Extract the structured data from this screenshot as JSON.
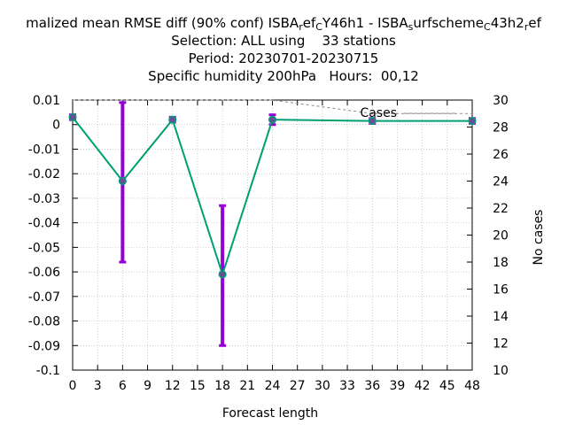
{
  "chart_data": {
    "type": "line",
    "title": {
      "line1": "malized mean RMSE diff (90% conf) ISBA",
      "line1_parts": [
        {
          "text": "malized mean RMSE diff (90% conf) ISBA",
          "sub": false
        },
        {
          "text": "r",
          "sub": true
        },
        {
          "text": "ef",
          "sub": false
        },
        {
          "text": "C",
          "sub": true
        },
        {
          "text": "Y46h1 - ISBA",
          "sub": false
        },
        {
          "text": "s",
          "sub": true
        },
        {
          "text": "urfscheme",
          "sub": false
        },
        {
          "text": "C",
          "sub": true
        },
        {
          "text": "43h2",
          "sub": false
        },
        {
          "text": "r",
          "sub": true
        },
        {
          "text": "ef",
          "sub": false
        }
      ],
      "line2": "Selection: ALL using    33 stations",
      "line3": "Period: 20230701-20230715",
      "line4": "Specific humidity 200hPa   Hours:  00,12"
    },
    "xlabel": "Forecast length",
    "y2label": "No cases",
    "xlim": [
      0,
      48
    ],
    "ylim": [
      -0.1,
      0.01
    ],
    "y2lim": [
      10,
      30
    ],
    "xticks": [
      "0",
      "3",
      "6",
      "9",
      "12",
      "15",
      "18",
      "21",
      "24",
      "27",
      "30",
      "33",
      "36",
      "39",
      "42",
      "45",
      "48"
    ],
    "yticks": [
      "0.01",
      "0",
      "-0.01",
      "-0.02",
      "-0.03",
      "-0.04",
      "-0.05",
      "-0.06",
      "-0.07",
      "-0.08",
      "-0.09",
      "-0.1"
    ],
    "y2ticks": [
      "30",
      "28",
      "26",
      "24",
      "22",
      "20",
      "18",
      "16",
      "14",
      "12",
      "10"
    ],
    "grid": true,
    "legend": {
      "label": "Cases",
      "placement": "top-right"
    },
    "series": [
      {
        "kind": "line",
        "color": "#009e73",
        "x": [
          0,
          6,
          12,
          18,
          24,
          36,
          48
        ],
        "y": [
          0.003,
          -0.023,
          0.002,
          -0.061,
          0.002,
          0.0015,
          0.0015
        ]
      }
    ],
    "error_bars": {
      "color": "#9400d3",
      "x": [
        0,
        6,
        12,
        18,
        24,
        36,
        48
      ],
      "low": [
        0.002,
        -0.056,
        0.001,
        -0.09,
        0.0,
        0.0005,
        0.0005
      ],
      "high": [
        0.004,
        0.009,
        0.003,
        -0.033,
        0.004,
        0.0025,
        0.0025
      ]
    },
    "cases": {
      "color": "#888888",
      "x": [
        0,
        24,
        36,
        48
      ],
      "y": [
        30,
        30,
        29,
        29
      ]
    }
  }
}
